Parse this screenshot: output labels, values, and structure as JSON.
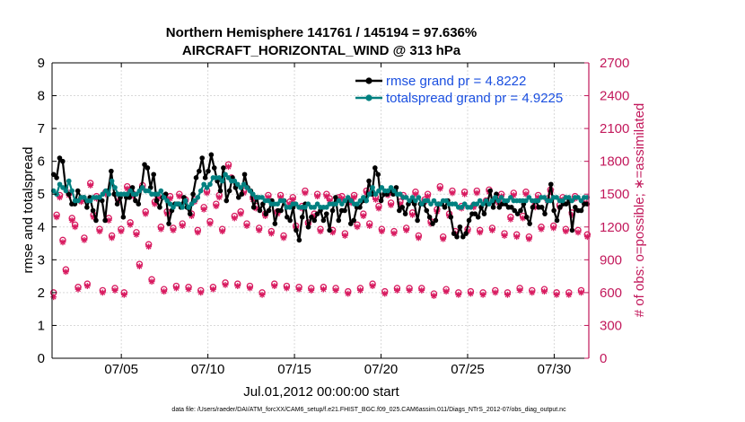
{
  "chart_data": {
    "type": "line",
    "title_line1": "Northern Hemisphere 141761 / 145194 = 97.636%",
    "title_line2": "AIRCRAFT_HORIZONTAL_WIND @ 313 hPa",
    "xlabel": "Jul.01,2012 00:00:00 start",
    "ylabel": "rmse and totalspread",
    "ylabel_right": "# of obs: o=possible; ∗=assimilated",
    "footnote": "data file: /Users/raeder/DAI/ATM_forcXX/CAM6_setup/f.e21.FHIST_BGC.f09_025.CAM6assim.011/Diags_NTrS_2012-07/obs_diag_output.nc",
    "x_day_range": [
      1,
      32
    ],
    "ylim": [
      0,
      9
    ],
    "ylim_right": [
      0,
      2700
    ],
    "x_ticks": [
      {
        "day": 5,
        "label": "07/05"
      },
      {
        "day": 10,
        "label": "07/10"
      },
      {
        "day": 15,
        "label": "07/15"
      },
      {
        "day": 20,
        "label": "07/20"
      },
      {
        "day": 25,
        "label": "07/25"
      },
      {
        "day": 30,
        "label": "07/30"
      }
    ],
    "y_ticks": [
      "0",
      "1",
      "2",
      "3",
      "4",
      "5",
      "6",
      "7",
      "8",
      "9"
    ],
    "y_ticks_right": [
      "0",
      "300",
      "600",
      "900",
      "1200",
      "1500",
      "1800",
      "2100",
      "2400",
      "2700"
    ],
    "colors": {
      "rmse": "#000000",
      "spread": "#008080",
      "obs": "#d81b60",
      "right_axis": "#c2185b",
      "legend_text": "#1a4fe0"
    },
    "series": [
      {
        "name": "rmse grand pr = 4.8222",
        "values": [
          5.6,
          5.5,
          6.1,
          6.0,
          5.2,
          5.0,
          4.7,
          4.7,
          5.1,
          4.9,
          4.9,
          4.6,
          4.9,
          4.5,
          4.2,
          4.9,
          4.8,
          4.2,
          5.1,
          5.7,
          5.0,
          4.7,
          4.9,
          4.3,
          4.9,
          4.9,
          5.2,
          4.8,
          4.7,
          5.2,
          5.9,
          5.8,
          5.2,
          5.6,
          4.8,
          4.6,
          4.9,
          5.0,
          4.1,
          4.5,
          4.7,
          4.7,
          4.6,
          4.9,
          4.6,
          4.4,
          5.0,
          5.5,
          5.7,
          6.1,
          5.5,
          5.7,
          6.2,
          5.8,
          5.4,
          5.1,
          5.8,
          4.8,
          5.1,
          5.5,
          5.2,
          4.9,
          5.0,
          5.6,
          5.2,
          5.1,
          4.6,
          4.9,
          4.5,
          4.7,
          4.4,
          4.5,
          4.8,
          4.1,
          4.5,
          4.5,
          4.8,
          4.3,
          4.2,
          4.6,
          3.9,
          3.6,
          4.3,
          4.7,
          4.0,
          4.3,
          4.2,
          4.4,
          4.5,
          4.2,
          4.4,
          3.9,
          4.5,
          4.9,
          4.2,
          4.5,
          4.5,
          4.8,
          4.1,
          4.2,
          4.6,
          4.6,
          4.8,
          4.8,
          5.4,
          5.0,
          5.8,
          5.6,
          4.8,
          5.0,
          5.0,
          5.1,
          5.0,
          5.2,
          4.5,
          4.6,
          4.4,
          4.7,
          4.8,
          4.7,
          4.2,
          4.7,
          4.7,
          4.5,
          4.3,
          4.1,
          4.2,
          4.7,
          4.7,
          4.6,
          4.8,
          4.3,
          3.8,
          3.7,
          4.0,
          3.7,
          3.8,
          4.2,
          4.4,
          4.4,
          4.3,
          4.6,
          4.4,
          4.7,
          5.1,
          4.6,
          5.0,
          4.6,
          4.7,
          4.7,
          4.6,
          4.6,
          4.5,
          4.4,
          4.5,
          4.7,
          4.3,
          4.1,
          4.6,
          4.8,
          4.6,
          4.6,
          4.4,
          4.8,
          5.3,
          4.5,
          4.2,
          4.6,
          4.7,
          4.7,
          4.8,
          3.9,
          4.6,
          4.5,
          4.5,
          4.7,
          4.7
        ]
      },
      {
        "name": "totalspread grand pr = 4.9225",
        "values": [
          5.1,
          5.0,
          5.3,
          5.2,
          5.1,
          5.4,
          5.1,
          4.8,
          4.8,
          4.9,
          4.9,
          4.8,
          4.8,
          4.9,
          4.9,
          4.9,
          5.0,
          5.1,
          5.0,
          5.4,
          5.2,
          5.0,
          5.0,
          5.0,
          5.0,
          5.1,
          5.0,
          5.0,
          5.1,
          5.2,
          5.1,
          5.1,
          5.0,
          5.0,
          5.0,
          5.1,
          4.9,
          4.8,
          4.7,
          4.6,
          4.7,
          4.7,
          4.6,
          4.8,
          4.6,
          4.7,
          4.8,
          4.9,
          5.1,
          5.3,
          5.2,
          5.3,
          5.5,
          5.5,
          5.5,
          5.4,
          5.6,
          5.5,
          5.4,
          5.4,
          5.3,
          5.2,
          5.3,
          5.2,
          5.1,
          5.0,
          4.9,
          4.9,
          4.9,
          4.8,
          4.8,
          4.7,
          4.7,
          4.7,
          4.8,
          4.8,
          4.6,
          4.6,
          4.7,
          4.7,
          4.6,
          4.6,
          4.6,
          4.7,
          4.6,
          4.6,
          4.7,
          4.6,
          4.6,
          4.6,
          4.7,
          4.7,
          4.7,
          4.8,
          4.7,
          4.8,
          4.9,
          4.8,
          4.7,
          4.7,
          4.8,
          4.9,
          4.8,
          5.0,
          5.2,
          5.0,
          5.1,
          5.2,
          5.1,
          5.1,
          5.2,
          5.1,
          5.0,
          5.0,
          4.9,
          4.9,
          4.8,
          4.9,
          4.8,
          4.9,
          4.7,
          4.8,
          4.8,
          4.7,
          4.8,
          4.7,
          4.7,
          4.8,
          4.8,
          4.7,
          4.7,
          4.7,
          4.6,
          4.6,
          4.7,
          4.6,
          4.6,
          4.7,
          4.7,
          4.8,
          4.7,
          4.8,
          4.7,
          4.8,
          4.9,
          4.8,
          4.9,
          4.8,
          4.8,
          4.9,
          4.8,
          4.8,
          4.8,
          4.8,
          4.8,
          4.9,
          4.8,
          4.8,
          4.8,
          4.9,
          4.9,
          4.8,
          4.8,
          4.9,
          4.9,
          4.8,
          4.8,
          4.9,
          4.9,
          4.8,
          4.9,
          4.9,
          4.8,
          4.9,
          4.9
        ]
      }
    ],
    "obs_counts": {
      "name": "# of obs",
      "possible": [
        600,
        1310,
        1490,
        1080,
        810,
        1510,
        1280,
        1220,
        650,
        1450,
        1100,
        680,
        1600,
        1310,
        1480,
        1180,
        620,
        1520,
        1280,
        1120,
        640,
        1460,
        1180,
        600,
        1570,
        1240,
        1500,
        1150,
        860,
        1580,
        1340,
        1040,
        720,
        1430,
        1480,
        1200,
        630,
        1340,
        1480,
        1190,
        660,
        1500,
        1230,
        1450,
        650,
        1320,
        1450,
        1170,
        620,
        1380,
        1530,
        1250,
        650,
        1410,
        1490,
        1180,
        690,
        1770,
        1650,
        1300,
        680,
        1340,
        1530,
        1230,
        660,
        1470,
        1390,
        1190,
        600,
        1320,
        1490,
        1160,
        680,
        1340,
        1490,
        1120,
        660,
        1430,
        1470,
        1210,
        650,
        1390,
        1530,
        1240,
        640,
        1320,
        1500,
        1180,
        650,
        1500,
        1460,
        1170,
        640,
        1470,
        1480,
        1140,
        610,
        1440,
        1490,
        1220,
        640,
        1320,
        1530,
        1230,
        680,
        1470,
        1390,
        1180,
        610,
        1510,
        1420,
        1160,
        640,
        1430,
        1490,
        1190,
        640,
        1330,
        1520,
        1120,
        640,
        1450,
        1500,
        1250,
        590,
        1360,
        1570,
        1110,
        630,
        1320,
        1530,
        1160,
        600,
        1390,
        1520,
        1180,
        610,
        1400,
        1530,
        1170,
        600,
        1440,
        1540,
        1190,
        620,
        1440,
        1500,
        1140,
        600,
        1290,
        1510,
        1130,
        640,
        1300,
        1520,
        1110,
        620,
        1400,
        1490,
        1200,
        630,
        1460,
        1540,
        1210,
        600,
        1400,
        1470,
        1180,
        600,
        1330,
        1480,
        1170,
        620,
        1440,
        1130
      ],
      "assimilated": [
        560,
        1290,
        1470,
        1060,
        790,
        1490,
        1260,
        1200,
        630,
        1430,
        1080,
        660,
        1580,
        1290,
        1460,
        1160,
        600,
        1500,
        1260,
        1100,
        620,
        1440,
        1160,
        580,
        1550,
        1220,
        1480,
        1130,
        840,
        1560,
        1320,
        1020,
        700,
        1410,
        1460,
        1180,
        610,
        1320,
        1460,
        1170,
        640,
        1480,
        1210,
        1430,
        630,
        1300,
        1430,
        1150,
        600,
        1360,
        1510,
        1230,
        630,
        1390,
        1470,
        1160,
        670,
        1750,
        1630,
        1280,
        660,
        1320,
        1510,
        1210,
        640,
        1450,
        1370,
        1170,
        580,
        1300,
        1470,
        1140,
        660,
        1320,
        1470,
        1100,
        640,
        1410,
        1450,
        1190,
        630,
        1370,
        1510,
        1220,
        620,
        1300,
        1480,
        1160,
        630,
        1480,
        1440,
        1150,
        620,
        1450,
        1460,
        1120,
        590,
        1420,
        1470,
        1200,
        620,
        1300,
        1510,
        1210,
        660,
        1450,
        1370,
        1160,
        590,
        1490,
        1400,
        1140,
        620,
        1410,
        1470,
        1170,
        620,
        1310,
        1500,
        1100,
        620,
        1430,
        1480,
        1230,
        570,
        1340,
        1550,
        1090,
        610,
        1300,
        1510,
        1140,
        580,
        1370,
        1500,
        1160,
        590,
        1380,
        1510,
        1150,
        580,
        1420,
        1520,
        1170,
        600,
        1420,
        1480,
        1120,
        580,
        1270,
        1490,
        1110,
        620,
        1280,
        1500,
        1090,
        600,
        1380,
        1470,
        1180,
        610,
        1440,
        1520,
        1190,
        580,
        1380,
        1450,
        1160,
        580,
        1310,
        1460,
        1150,
        600,
        1420,
        1110
      ]
    }
  }
}
